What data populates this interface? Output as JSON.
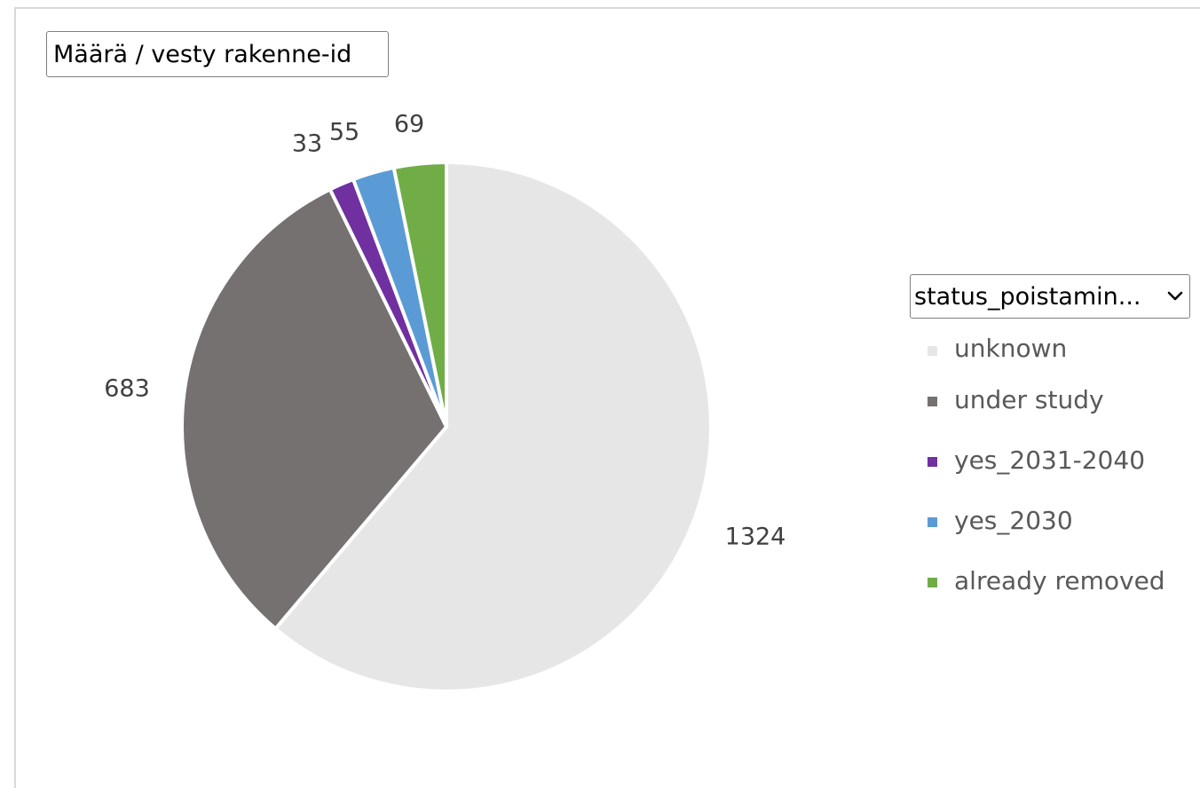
{
  "value_field": {
    "label": "Määrä  / vesty rakenne-id"
  },
  "category_field": {
    "label": "status_poistamin...",
    "icon": "chevron-down-icon"
  },
  "chart_data": {
    "type": "pie",
    "title": "",
    "categories": [
      "unknown",
      "under study",
      "yes_2031-2040",
      "yes_2030",
      "already removed"
    ],
    "values": [
      1324,
      683,
      33,
      55,
      69
    ],
    "colors": [
      "#e7e6e6",
      "#767171",
      "#7030a0",
      "#5b9bd5",
      "#70ad47"
    ],
    "data_labels": [
      "1324",
      "683",
      "33",
      "55",
      "69"
    ],
    "legend_position": "right",
    "legend_title": "status_poistamin...",
    "start_angle_deg": 0,
    "direction": "clockwise"
  },
  "legend": {
    "items": [
      {
        "label": "unknown",
        "color": "#e7e6e6"
      },
      {
        "label": "under study",
        "color": "#767171"
      },
      {
        "label": "yes_2031-2040",
        "color": "#7030a0"
      },
      {
        "label": "yes_2030",
        "color": "#5b9bd5"
      },
      {
        "label": "already removed",
        "color": "#70ad47"
      }
    ]
  }
}
